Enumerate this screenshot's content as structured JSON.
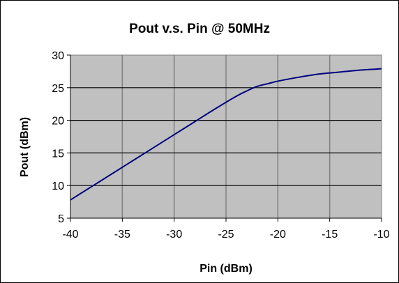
{
  "chart_data": {
    "type": "line",
    "title": "Pout v.s. Pin @ 50MHz",
    "xlabel": "Pin (dBm)",
    "ylabel": "Pout (dBm)",
    "xlim": [
      -40,
      -10
    ],
    "ylim": [
      5,
      30
    ],
    "xticks": [
      "-40",
      "-35",
      "-30",
      "-25",
      "-20",
      "-15",
      "-10"
    ],
    "yticks": [
      "5",
      "10",
      "15",
      "20",
      "25",
      "30"
    ],
    "grid": true,
    "legend": "none",
    "colors": {
      "plot_area": "#c0c0c0",
      "line": "#000080",
      "grid_h": "#000000",
      "grid_v": "#808080"
    },
    "series": [
      {
        "x": [
          -40,
          -38,
          -36,
          -34,
          -32,
          -30,
          -28,
          -26,
          -24,
          -23,
          -22,
          -21,
          -20,
          -18,
          -16,
          -14,
          -12,
          -10
        ],
        "y": [
          7.8,
          9.8,
          11.8,
          13.8,
          15.8,
          17.8,
          19.8,
          21.8,
          23.7,
          24.5,
          25.2,
          25.6,
          26.0,
          26.6,
          27.1,
          27.4,
          27.7,
          27.9
        ]
      }
    ]
  }
}
